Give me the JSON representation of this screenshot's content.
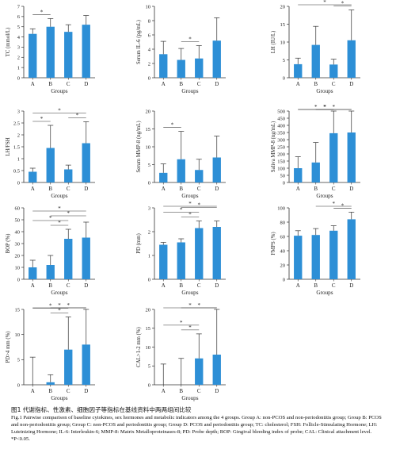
{
  "figure": {
    "x_axis_title": "Groups",
    "bar_color": "#2d8fd6",
    "charts": [
      {
        "type": "bar",
        "categories": [
          "A",
          "B",
          "C",
          "D"
        ],
        "ylabel": "TC (mmol/L)",
        "ylim": [
          0,
          7
        ],
        "yticks": [
          0,
          1,
          2,
          3,
          4,
          5,
          6,
          7
        ],
        "values": [
          4.3,
          5.0,
          4.5,
          5.2
        ],
        "errors": [
          0.5,
          0.8,
          0.7,
          0.9
        ],
        "sig": [
          {
            "pair": [
              "A",
              "B"
            ],
            "label": "*"
          }
        ]
      },
      {
        "type": "bar",
        "categories": [
          "A",
          "B",
          "C",
          "D"
        ],
        "ylabel": "Serum IL-6 (pg/mL)",
        "ylim": [
          0,
          10
        ],
        "yticks": [
          0,
          2,
          4,
          6,
          8,
          10
        ],
        "values": [
          3.3,
          2.5,
          2.7,
          5.2
        ],
        "errors": [
          1.8,
          1.6,
          1.8,
          3.2
        ],
        "sig": [
          {
            "pair": [
              "B",
              "C"
            ],
            "label": "*"
          }
        ]
      },
      {
        "type": "bar",
        "categories": [
          "A",
          "B",
          "C",
          "D"
        ],
        "ylabel": "LH (IU/L)",
        "ylim": [
          0,
          20
        ],
        "yticks": [
          0,
          5,
          10,
          15,
          20
        ],
        "values": [
          3.8,
          9.2,
          3.7,
          10.5
        ],
        "errors": [
          1.7,
          5.2,
          1.5,
          8.5
        ],
        "sig": [
          {
            "pair": [
              "A",
              "D"
            ],
            "label": "*"
          },
          {
            "pair": [
              "C",
              "D"
            ],
            "label": "*"
          }
        ]
      },
      {
        "type": "bar",
        "categories": [
          "A",
          "B",
          "C",
          "D"
        ],
        "ylabel": "LH/FSH",
        "ylim": [
          0,
          3
        ],
        "yticks": [
          0,
          0.5,
          1,
          1.5,
          2,
          2.5,
          3
        ],
        "values": [
          0.45,
          1.45,
          0.55,
          1.65
        ],
        "errors": [
          0.15,
          0.95,
          0.18,
          0.9
        ],
        "sig": [
          {
            "pair": [
              "A",
              "B"
            ],
            "label": "*"
          },
          {
            "pair": [
              "A",
              "D"
            ],
            "label": "*"
          },
          {
            "pair": [
              "C",
              "D"
            ],
            "label": "*"
          }
        ]
      },
      {
        "type": "bar",
        "categories": [
          "A",
          "B",
          "C",
          "D"
        ],
        "ylabel": "Serum MMP-8 (ng/mL)",
        "ylim": [
          0,
          20
        ],
        "yticks": [
          0,
          5,
          10,
          15,
          20
        ],
        "values": [
          2.7,
          6.5,
          3.5,
          7.0
        ],
        "errors": [
          2.5,
          7.8,
          3.0,
          6.0
        ],
        "sig": [
          {
            "pair": [
              "A",
              "B"
            ],
            "label": "*"
          }
        ]
      },
      {
        "type": "bar",
        "categories": [
          "A",
          "B",
          "C",
          "D"
        ],
        "ylabel": "Saliva MMP-8 (ng/mL)",
        "ylim": [
          0,
          500
        ],
        "yticks": [
          0,
          50,
          100,
          150,
          200,
          250,
          300,
          350,
          400,
          450,
          500
        ],
        "values": [
          100,
          140,
          345,
          350
        ],
        "errors": [
          80,
          140,
          155,
          160
        ],
        "sig": [
          {
            "pair": [
              "A",
              "C"
            ],
            "label": "*"
          },
          {
            "pair": [
              "A",
              "D"
            ],
            "label": "*"
          },
          {
            "pair": [
              "B",
              "C"
            ],
            "label": "*"
          },
          {
            "pair": [
              "B",
              "D"
            ],
            "label": "*"
          }
        ]
      },
      {
        "type": "bar",
        "categories": [
          "A",
          "B",
          "C",
          "D"
        ],
        "ylabel": "BOP (%)",
        "ylim": [
          0,
          60
        ],
        "yticks": [
          0,
          10,
          20,
          30,
          40,
          50,
          60
        ],
        "values": [
          10,
          12,
          34,
          35
        ],
        "errors": [
          6,
          8,
          8,
          13
        ],
        "sig": [
          {
            "pair": [
              "A",
              "C"
            ],
            "label": "*"
          },
          {
            "pair": [
              "A",
              "D"
            ],
            "label": "*"
          },
          {
            "pair": [
              "B",
              "C"
            ],
            "label": "*"
          },
          {
            "pair": [
              "B",
              "D"
            ],
            "label": "*"
          }
        ]
      },
      {
        "type": "bar",
        "categories": [
          "A",
          "B",
          "C",
          "D"
        ],
        "ylabel": "PD (mm)",
        "ylim": [
          0,
          3
        ],
        "yticks": [
          0,
          1,
          2,
          3
        ],
        "values": [
          1.45,
          1.55,
          2.15,
          2.2
        ],
        "errors": [
          0.1,
          0.15,
          0.3,
          0.25
        ],
        "sig": [
          {
            "pair": [
              "A",
              "C"
            ],
            "label": "*"
          },
          {
            "pair": [
              "A",
              "D"
            ],
            "label": "*"
          },
          {
            "pair": [
              "B",
              "C"
            ],
            "label": "*"
          },
          {
            "pair": [
              "B",
              "D"
            ],
            "label": "*"
          }
        ]
      },
      {
        "type": "bar",
        "categories": [
          "A",
          "B",
          "C",
          "D"
        ],
        "ylabel": "FMPS (%)",
        "ylim": [
          0,
          100
        ],
        "yticks": [
          0,
          20,
          40,
          60,
          80,
          100
        ],
        "values": [
          61,
          62,
          68,
          84
        ],
        "errors": [
          7,
          9,
          7,
          10
        ],
        "sig": [
          {
            "pair": [
              "B",
              "D"
            ],
            "label": "*"
          },
          {
            "pair": [
              "C",
              "D"
            ],
            "label": "*"
          }
        ]
      },
      {
        "type": "bar",
        "categories": [
          "A",
          "B",
          "C",
          "D"
        ],
        "ylabel": "PD>4 mm (%)",
        "ylim": [
          0,
          15
        ],
        "yticks": [
          0,
          5,
          10,
          15
        ],
        "values": [
          0,
          0.5,
          7,
          8
        ],
        "errors": [
          5.5,
          1.5,
          6.5,
          8
        ],
        "sig": [
          {
            "pair": [
              "A",
              "C"
            ],
            "label": "*"
          },
          {
            "pair": [
              "A",
              "D"
            ],
            "label": "*"
          },
          {
            "pair": [
              "B",
              "C"
            ],
            "label": "*"
          },
          {
            "pair": [
              "B",
              "D"
            ],
            "label": "*"
          }
        ]
      },
      {
        "type": "bar",
        "categories": [
          "A",
          "B",
          "C",
          "D"
        ],
        "ylabel": "CAL>1-2 mm (%)",
        "ylim": [
          0,
          20
        ],
        "yticks": [
          0,
          5,
          10,
          15,
          20
        ],
        "values": [
          0,
          0,
          7,
          8
        ],
        "errors": [
          5.5,
          7,
          6.5,
          12
        ],
        "sig": [
          {
            "pair": [
              "A",
              "C"
            ],
            "label": "*"
          },
          {
            "pair": [
              "A",
              "D"
            ],
            "label": "*"
          },
          {
            "pair": [
              "B",
              "C"
            ],
            "label": "*"
          },
          {
            "pair": [
              "B",
              "D"
            ],
            "label": "*"
          }
        ]
      }
    ]
  },
  "caption": {
    "title": "图1 代谢指标、性激素、细胞因子等指标在基线资料中两两组间比较",
    "body": "Fig.1 Pairwise comparison of baseline cytokines, sex hormones and metabolic indicators among the 4 groups. Group A: non-PCOS and non-periodontitis group; Group B: PCOS and non-periodontitis group; Group C: non-PCOS and periodontitis group; Group D: PCOS and periodontitis group; TC: cholesterol; FSH: Follicle-Stimulating Hormone; LH: Luteinizing Hormone; IL-6: Interleukin-6; MMP-8: Matrix Metalloproteinases-8; PD: Probe depth; BOP: Gingival bleeding index of probe; CAL: Clinical attachment level. *P<0.05."
  }
}
